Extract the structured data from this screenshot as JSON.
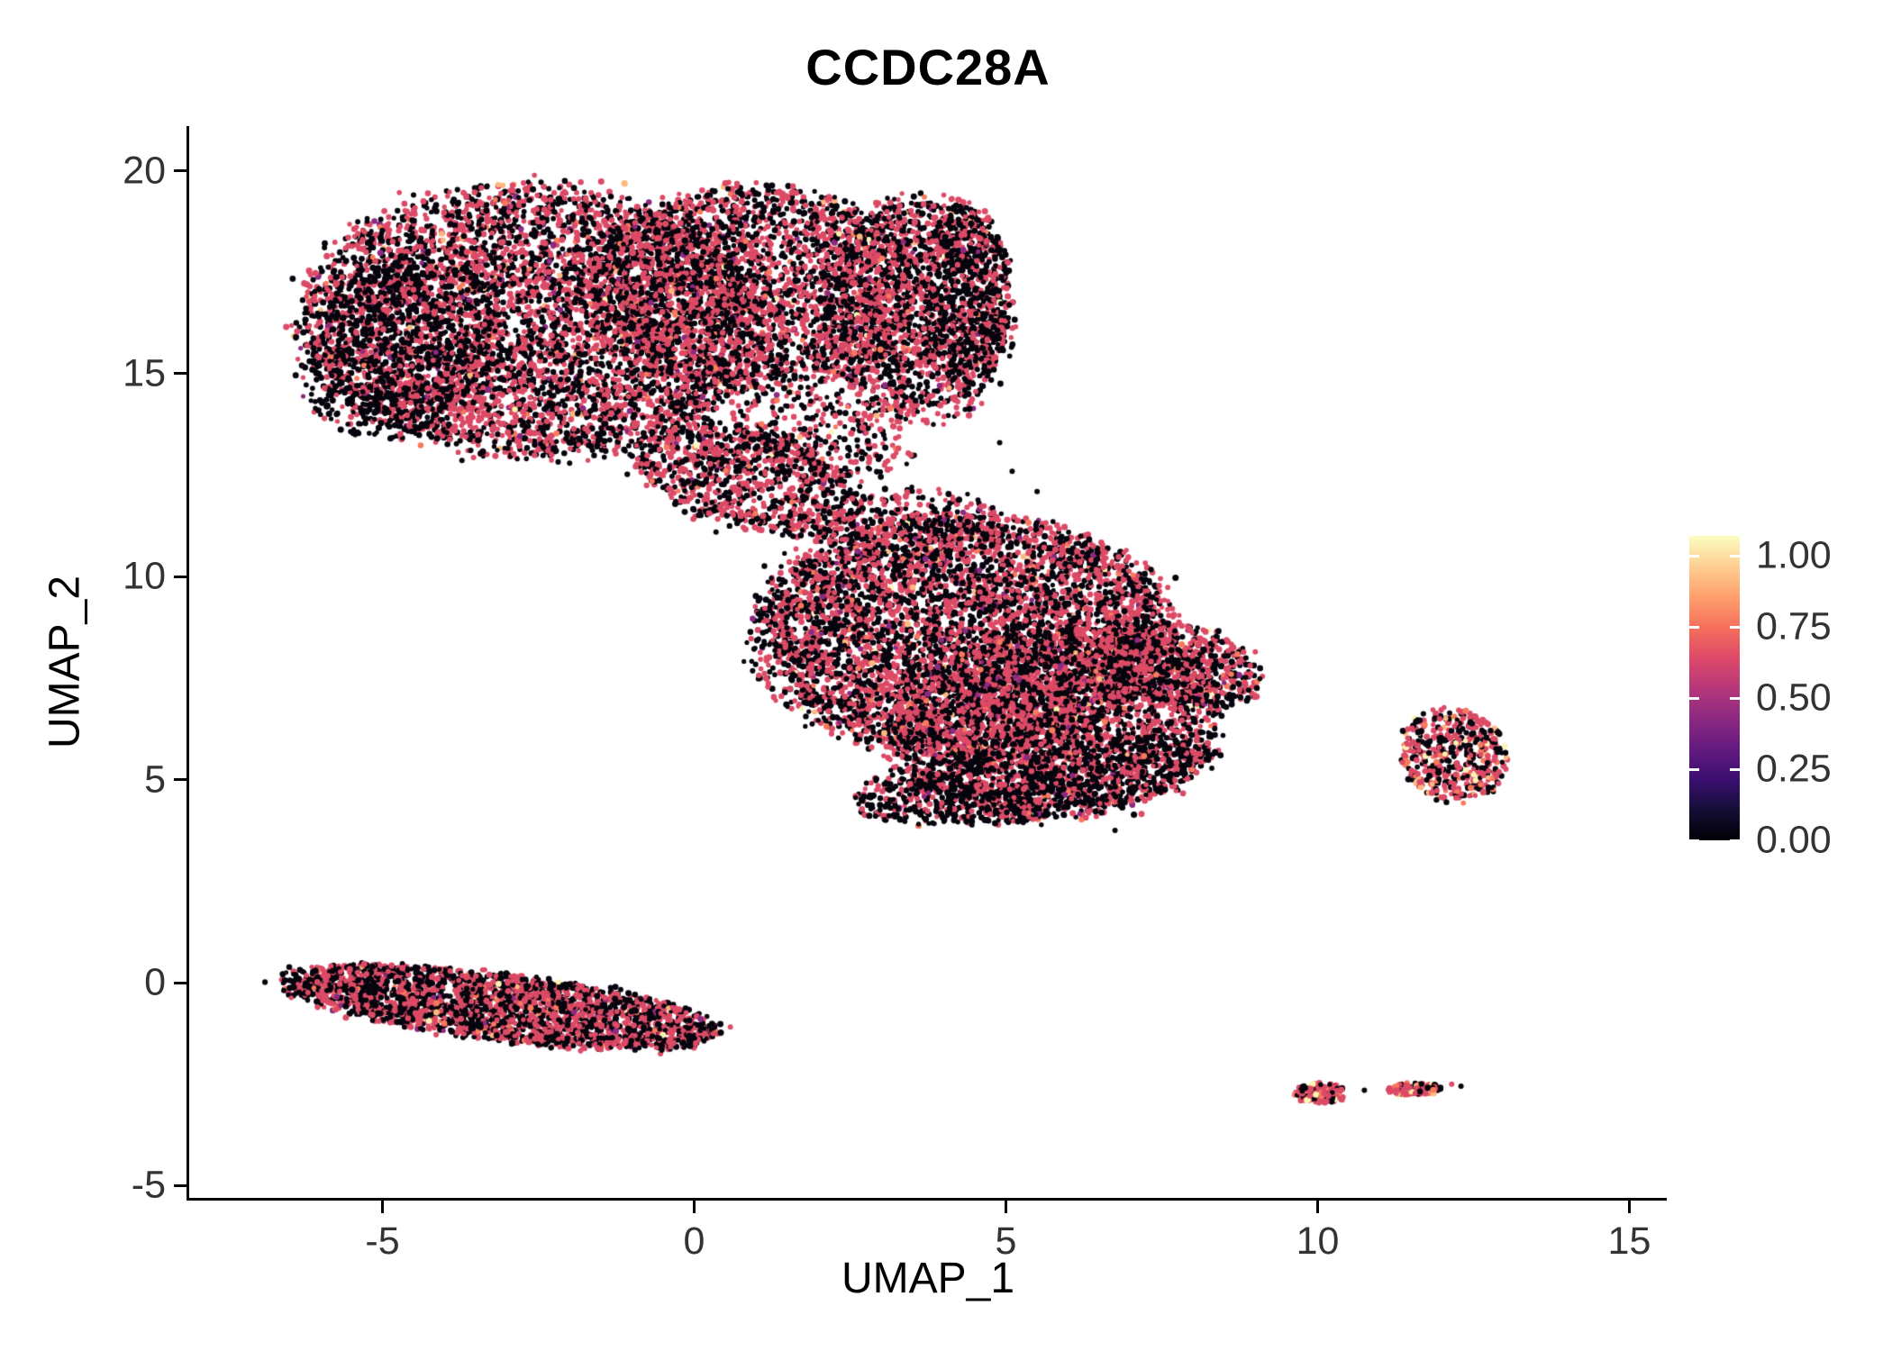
{
  "chart_data": {
    "type": "scatter",
    "title": "CCDC28A",
    "xlabel": "UMAP_1",
    "ylabel": "UMAP_2",
    "xlim": [
      -8.1,
      15.6
    ],
    "ylim": [
      -5.3,
      21.1
    ],
    "xticks": [
      -5,
      0,
      5,
      10,
      15
    ],
    "yticks": [
      -5,
      0,
      5,
      10,
      15,
      20
    ],
    "grid": false,
    "legend_position": "right",
    "seed": 1337,
    "point_radius": 3.0,
    "palettes": {
      "default": [
        [
          "#06040D",
          0.5
        ],
        [
          "#DC4A66",
          0.455
        ],
        [
          "#8C2981",
          0.015
        ],
        [
          "#F9795C",
          0.02
        ],
        [
          "#FDB97E",
          0.007
        ],
        [
          "#FCF4B0",
          0.003
        ]
      ],
      "dark": [
        [
          "#06040D",
          0.72
        ],
        [
          "#DC4A66",
          0.265
        ],
        [
          "#8C2981",
          0.01
        ],
        [
          "#F9795C",
          0.005
        ]
      ],
      "bright": [
        [
          "#06040D",
          0.25
        ],
        [
          "#DC4A66",
          0.53
        ],
        [
          "#F9795C",
          0.12
        ],
        [
          "#FDB97E",
          0.06
        ],
        [
          "#FCF4B0",
          0.04
        ]
      ],
      "cmix": [
        [
          "#06040D",
          0.38
        ],
        [
          "#DC4A66",
          0.44
        ],
        [
          "#F9795C",
          0.09
        ],
        [
          "#FDB97E",
          0.05
        ],
        [
          "#FCF4B0",
          0.04
        ]
      ]
    },
    "clusters": [
      {
        "name": "top-left-main",
        "cx": -2.6,
        "cy": 16.3,
        "rx": 3.7,
        "ry": 3.3,
        "rot": -8,
        "n": 5200,
        "palette": "default"
      },
      {
        "name": "top-mid-lobe",
        "cx": 1.0,
        "cy": 17.1,
        "rx": 2.6,
        "ry": 2.5,
        "rot": 0,
        "n": 2600,
        "palette": "default"
      },
      {
        "name": "top-right-lobe",
        "cx": 3.55,
        "cy": 16.6,
        "rx": 1.55,
        "ry": 2.8,
        "rot": 0,
        "n": 1500,
        "palette": "default"
      },
      {
        "name": "top-right-edge",
        "cx": 4.35,
        "cy": 16.9,
        "rx": 0.75,
        "ry": 2.3,
        "rot": 0,
        "n": 550,
        "palette": "dark"
      },
      {
        "name": "neck-bridge",
        "cx": 0.9,
        "cy": 12.4,
        "rx": 2.0,
        "ry": 1.15,
        "rot": -28,
        "n": 950,
        "palette": "default"
      },
      {
        "name": "neck-sparse",
        "cx": 2.1,
        "cy": 13.5,
        "rx": 1.5,
        "ry": 1.0,
        "rot": -20,
        "n": 260,
        "palette": "default"
      },
      {
        "name": "top-left-edge",
        "cx": -4.7,
        "cy": 15.7,
        "rx": 1.5,
        "ry": 2.3,
        "rot": -18,
        "n": 850,
        "palette": "dark"
      },
      {
        "name": "middle-main",
        "cx": 4.3,
        "cy": 8.6,
        "rx": 3.35,
        "ry": 2.95,
        "rot": 0,
        "n": 5200,
        "palette": "default"
      },
      {
        "name": "middle-lower",
        "cx": 5.8,
        "cy": 6.4,
        "rx": 2.7,
        "ry": 2.3,
        "rot": 18,
        "n": 2600,
        "palette": "default"
      },
      {
        "name": "middle-right-tip",
        "cx": 7.8,
        "cy": 7.8,
        "rx": 1.35,
        "ry": 0.95,
        "rot": -28,
        "n": 650,
        "palette": "default"
      },
      {
        "name": "middle-top-sparse",
        "cx": 3.4,
        "cy": 11.3,
        "rx": 1.4,
        "ry": 0.85,
        "rot": 10,
        "n": 240,
        "palette": "default"
      },
      {
        "name": "middle-bottom-edge",
        "cx": 5.4,
        "cy": 5.0,
        "rx": 2.9,
        "ry": 0.95,
        "rot": 12,
        "n": 1100,
        "palette": "dark"
      },
      {
        "name": "right-small",
        "cx": 12.2,
        "cy": 5.6,
        "rx": 0.85,
        "ry": 1.15,
        "rot": 8,
        "n": 480,
        "palette": "cmix"
      },
      {
        "name": "bottom-left-strip",
        "cx": -3.1,
        "cy": -0.6,
        "rx": 3.55,
        "ry": 0.8,
        "rot": -11,
        "n": 2700,
        "palette": "default"
      },
      {
        "name": "tiny-br-1",
        "cx": 10.05,
        "cy": -2.72,
        "rx": 0.4,
        "ry": 0.24,
        "rot": 0,
        "n": 140,
        "palette": "bright"
      },
      {
        "name": "tiny-br-2",
        "cx": 11.55,
        "cy": -2.62,
        "rx": 0.45,
        "ry": 0.16,
        "rot": 0,
        "n": 120,
        "palette": "bright"
      }
    ],
    "outliers": [
      [
        6.75,
        3.75,
        "#06040D"
      ],
      [
        9.0,
        8.15,
        "#DC4A66"
      ],
      [
        8.85,
        8.0,
        "#06040D"
      ],
      [
        1.3,
        11.2,
        "#DC4A66"
      ],
      [
        0.35,
        11.1,
        "#06040D"
      ],
      [
        10.75,
        -2.65,
        "#06040D"
      ],
      [
        12.15,
        -2.5,
        "#DC4A66"
      ],
      [
        12.3,
        -2.55,
        "#06040D"
      ],
      [
        5.1,
        12.6,
        "#06040D"
      ],
      [
        5.5,
        12.1,
        "#06040D"
      ],
      [
        2.6,
        13.0,
        "#06040D"
      ],
      [
        -0.5,
        12.2,
        "#06040D"
      ],
      [
        4.9,
        13.3,
        "#06040D"
      ],
      [
        6.2,
        11.0,
        "#06040D"
      ],
      [
        6.6,
        10.6,
        "#DC4A66"
      ],
      [
        7.3,
        9.9,
        "#06040D"
      ]
    ],
    "colorbar": {
      "tick_labels": [
        "1.00",
        "0.75",
        "0.50",
        "0.25",
        "0.00"
      ],
      "tick_values": [
        1.0,
        0.75,
        0.5,
        0.25,
        0.0
      ],
      "max_value": 1.07,
      "gradient": [
        {
          "pos": 0.0,
          "color": "#000004"
        },
        {
          "pos": 0.1,
          "color": "#140E36"
        },
        {
          "pos": 0.2,
          "color": "#3B0F70"
        },
        {
          "pos": 0.3,
          "color": "#641A80"
        },
        {
          "pos": 0.4,
          "color": "#8C2981"
        },
        {
          "pos": 0.5,
          "color": "#B73779"
        },
        {
          "pos": 0.6,
          "color": "#DE4968"
        },
        {
          "pos": 0.7,
          "color": "#F7705C"
        },
        {
          "pos": 0.8,
          "color": "#FE9F6D"
        },
        {
          "pos": 0.9,
          "color": "#FECF92"
        },
        {
          "pos": 1.0,
          "color": "#FCFDBF"
        }
      ]
    }
  }
}
